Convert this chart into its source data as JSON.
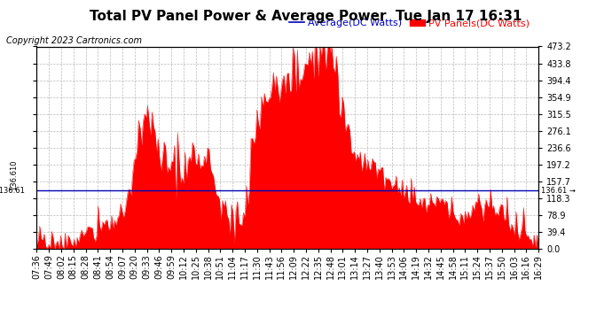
{
  "title": "Total PV Panel Power & Average Power  Tue Jan 17 16:31",
  "copyright_text": "Copyright 2023 Cartronics.com",
  "legend_average_label": "Average(DC Watts)",
  "legend_pv_label": "PV Panels(DC Watts)",
  "average_value": 136.61,
  "y_min": 0.0,
  "y_max": 473.2,
  "y_ticks": [
    0.0,
    39.4,
    78.9,
    118.3,
    157.7,
    197.2,
    236.6,
    276.1,
    315.5,
    354.9,
    394.4,
    433.8,
    473.2
  ],
  "x_tick_labels": [
    "07:36",
    "07:49",
    "08:02",
    "08:15",
    "08:28",
    "08:41",
    "08:54",
    "09:07",
    "09:20",
    "09:33",
    "09:46",
    "09:59",
    "10:12",
    "10:25",
    "10:38",
    "10:51",
    "11:04",
    "11:17",
    "11:30",
    "11:43",
    "11:56",
    "12:09",
    "12:22",
    "12:35",
    "12:48",
    "13:01",
    "13:14",
    "13:27",
    "13:40",
    "13:53",
    "14:06",
    "14:19",
    "14:32",
    "14:45",
    "14:58",
    "15:11",
    "15:24",
    "15:37",
    "15:50",
    "16:03",
    "16:16",
    "16:29"
  ],
  "pv_profile": [
    5,
    8,
    12,
    20,
    35,
    50,
    60,
    70,
    210,
    310,
    240,
    200,
    180,
    220,
    200,
    90,
    70,
    85,
    300,
    360,
    390,
    400,
    410,
    460,
    470,
    320,
    215,
    200,
    180,
    150,
    130,
    120,
    110,
    105,
    90,
    80,
    110,
    100,
    80,
    50,
    30,
    10
  ],
  "background_color": "#ffffff",
  "plot_bg_color": "#ffffff",
  "grid_color": "#aaaaaa",
  "fill_color": "#ff0000",
  "line_color": "#ff0000",
  "average_line_color": "#0000bb",
  "title_fontsize": 11,
  "tick_fontsize": 7,
  "copyright_fontsize": 7,
  "legend_fontsize": 8
}
